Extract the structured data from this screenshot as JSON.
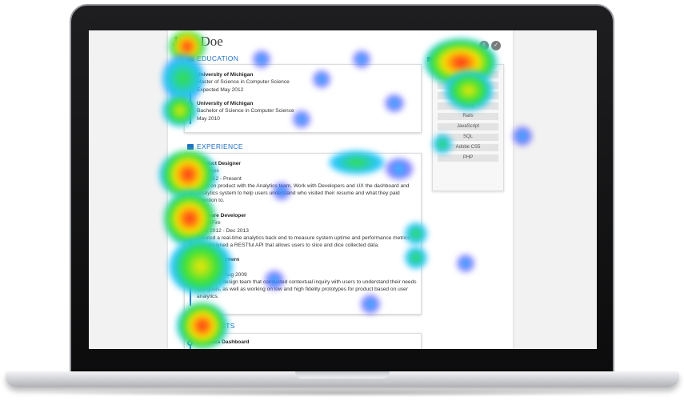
{
  "resume": {
    "name": "Jane Doe",
    "education": {
      "title": "EDUCATION",
      "entries": [
        {
          "school": "University of Michigan",
          "degree": "Master of Science in Computer Science",
          "date": "Expected May 2012"
        },
        {
          "school": "University of Michigan",
          "degree": "Bachelor of Science in Computer Science",
          "date": "May 2010"
        }
      ]
    },
    "experience": {
      "title": "EXPERIENCE",
      "entries": [
        {
          "role": "Product Designer",
          "org": "ResMaps",
          "date": "Jan 2012 - Present",
          "desc": "Work on product with the Analytics team. Work with Developers and UX the dashboard and Analytics system to help users understand who visited their resume and what they paid attention to."
        },
        {
          "role": "Software Developer",
          "org": "SignalFire",
          "date": "June 2012 - Dec 2013",
          "desc": "Created a real-time analytics back end to measure system uptime and performance metrics and designed a RESTful API that allows users to slice and dice collected data."
        },
        {
          "role": "UX Design Intern",
          "org": "UX Labs",
          "date": "May 2009 - Aug 2009",
          "desc": "Part of the design team that conducted contextual inquiry with users to understand their needs and goals, as well as working on low and high fidelity prototypes for product based on user analytics."
        }
      ]
    },
    "projects": {
      "title": "PROJECTS",
      "entries": [
        {
          "name": "Analytics Dashboard"
        }
      ]
    },
    "skills": {
      "title": "SKILLS",
      "items": [
        "C++",
        "Python",
        "Java EE",
        "Ruby",
        "Rails",
        "JavaScript",
        "SQL",
        "Adobe CS5",
        "PHP"
      ]
    }
  },
  "colors": {
    "accent": "#1f6fc5",
    "heat_hot": "#ff1e1e",
    "heat_warm": "#ffe600",
    "heat_mid": "#34e23a",
    "heat_cool": "#23c4ff",
    "heat_cold": "#4b3cff"
  },
  "icons": {
    "education": "graduation-cap-icon",
    "experience": "briefcase-icon",
    "projects": "paperclip-icon",
    "skills": "wrench-icon",
    "share": "share-icon",
    "download": "download-icon"
  }
}
